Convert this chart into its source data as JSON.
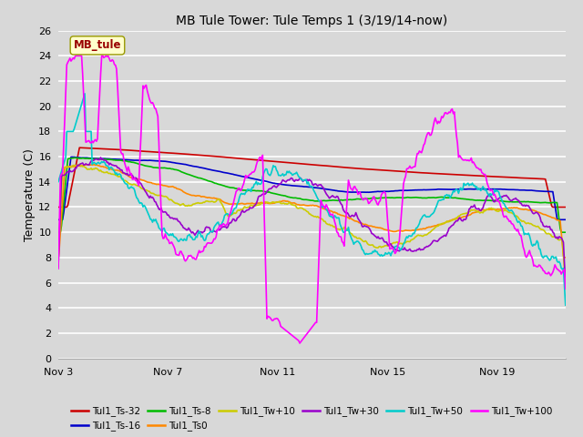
{
  "title": "MB Tule Tower: Tule Temps 1 (3/19/14-now)",
  "ylabel": "Temperature (C)",
  "ylim": [
    0,
    26
  ],
  "yticks": [
    0,
    2,
    4,
    6,
    8,
    10,
    12,
    14,
    16,
    18,
    20,
    22,
    24,
    26
  ],
  "bg_color": "#d8d8d8",
  "annotation_label": "MB_tule",
  "series": [
    {
      "label": "Tul1_Ts-32",
      "color": "#cc0000"
    },
    {
      "label": "Tul1_Ts-16",
      "color": "#0000cc"
    },
    {
      "label": "Tul1_Ts-8",
      "color": "#00bb00"
    },
    {
      "label": "Tul1_Ts0",
      "color": "#ff8800"
    },
    {
      "label": "Tul1_Tw+10",
      "color": "#cccc00"
    },
    {
      "label": "Tul1_Tw+30",
      "color": "#9900cc"
    },
    {
      "label": "Tul1_Tw+50",
      "color": "#00cccc"
    },
    {
      "label": "Tul1_Tw+100",
      "color": "#ff00ff"
    }
  ],
  "xtick_labels": [
    "Nov 3",
    "Nov 7",
    "Nov 11",
    "Nov 15",
    "Nov 19"
  ],
  "xtick_positions": [
    0,
    4,
    8,
    12,
    16
  ],
  "xlim": [
    0,
    18.5
  ]
}
